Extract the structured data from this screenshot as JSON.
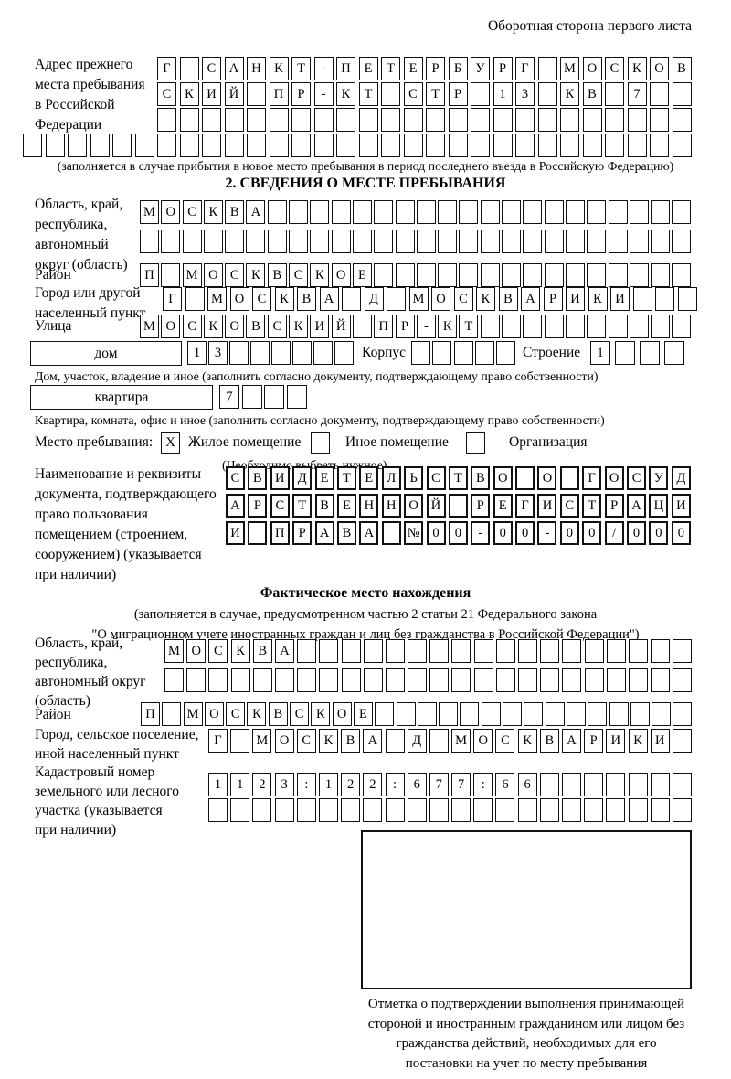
{
  "page": {
    "header_note": "Оборотная сторона первого листа",
    "section2_title": "2. СВЕДЕНИЯ О МЕСТЕ ПРЕБЫВАНИЯ",
    "fact_title": "Фактическое место нахождения",
    "fact_note1": "(заполняется в случае, предусмотренном частью 2 статьи 21 Федерального закона",
    "fact_note2": "\"О миграционном учете иностранных граждан и лиц без гражданства в Российской Федерации\")"
  },
  "labels": {
    "prev_address": "Адрес прежнего\nместа пребывания\nв Российской\nФедерации",
    "prev_note": "(заполняется в случае прибытия в новое место пребывания в период последнего въезда в Российскую Федерацию)",
    "oblast1": "Область, край,\nреспублика,\nавтономный\nокруг (область)",
    "raion1": "Район",
    "gorod1": "Город или другой\nнаселенный пункт",
    "ulitsa": "Улица",
    "dom_box": "дом",
    "korpus": "Корпус",
    "stroenie": "Строение",
    "dom_caption": "Дом, участок, владение и иное (заполнить согласно документу, подтверждающему право собственности)",
    "kvartira_box": "квартира",
    "kvartira_caption": "Квартира, комната, офис и иное (заполнить согласно документу, подтверждающему право собственности)",
    "doc_label": "Наименование и реквизиты\nдокумента, подтверждающего\nправо пользования\nпомещением (строением,\nсооружением) (указывается\nпри наличии)",
    "oblast2": "Область, край,\nреспублика,\nавтономный округ\n(область)",
    "raion2": "Район",
    "gorod2": "Город, сельское поселение,\nиной населенный пункт",
    "kadastr": "Кадастровый номер\nземельного или лесного\nучастка (указывается\nпри наличии)",
    "stamp_caption": "Отметка о подтверждении выполнения принимающей стороной и иностранным гражданином или лицом без гражданства действий, необходимых для его постановки на учет по месту пребывания"
  },
  "mesto": {
    "label": "Место пребывания:",
    "zhiloe_label": "Жилое помещение",
    "inoe_label": "Иное помещение",
    "org_label": "Организация",
    "note": "(Необходимо выбрать нужное)",
    "zhiloe_value": "X",
    "inoe_value": "",
    "org_value": ""
  },
  "grids": {
    "prev1": "Г САНКТ-ПЕТЕРБУРГ МОСКОВ",
    "prev2": "СКИЙ ПР-КТ СТР 13 КВ 7",
    "prev3": "",
    "prev4": "",
    "obl1a": "МОСКВА",
    "obl1b": "",
    "raion1": "П МОСКВСКОЕ",
    "gorod1": "Г МОСКВА Д МОСКВАРИКИ",
    "ulitsa": "МОСКОВСКИЙ ПР-КТ",
    "dom": "13",
    "korpus": "",
    "stroenie": "1",
    "kvartira": "7",
    "doc1": "СВИДЕТЕЛЬСТВО О ГОСУД",
    "doc2": "АРСТВЕННОЙ РЕГИСТРАЦИ",
    "doc3": "И ПРАВА №00-00-00/000",
    "obl2a": "МОСКВА",
    "obl2b": "",
    "raion2": "П МОСКВСКОЕ",
    "gorod2": "Г МОСКВА Д МОСКВАРИКИ",
    "kad1": "1123:122:677:66",
    "kad2": ""
  }
}
